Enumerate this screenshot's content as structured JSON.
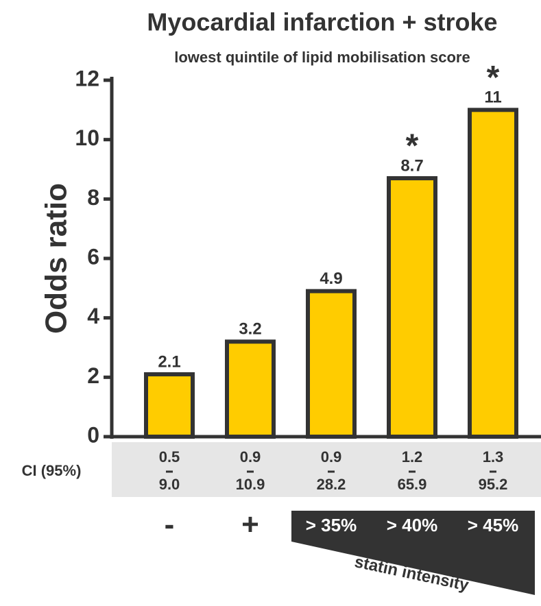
{
  "chart_data": {
    "type": "bar",
    "title": "Myocardial infarction + stroke",
    "subtitle": "lowest quintile of lipid mobilisation score",
    "ylabel": "Odds ratio",
    "categories": [
      "-",
      "+",
      "> 35%",
      "> 40%",
      "> 45%"
    ],
    "values": [
      2.1,
      3.2,
      4.9,
      8.7,
      11
    ],
    "significance": [
      null,
      null,
      null,
      "*",
      "*"
    ],
    "color": "#ffcc00",
    "ylim": [
      0,
      12
    ],
    "yticks": [
      0,
      2,
      4,
      6,
      8,
      10,
      12
    ],
    "ci_label": "CI (95%)",
    "ci_lower": [
      "0.5",
      "0.9",
      "0.9",
      "1.2",
      "1.3"
    ],
    "ci_upper": [
      "9.0",
      "10.9",
      "28.2",
      "65.9",
      "95.2"
    ],
    "group_label": "statin intensity"
  }
}
